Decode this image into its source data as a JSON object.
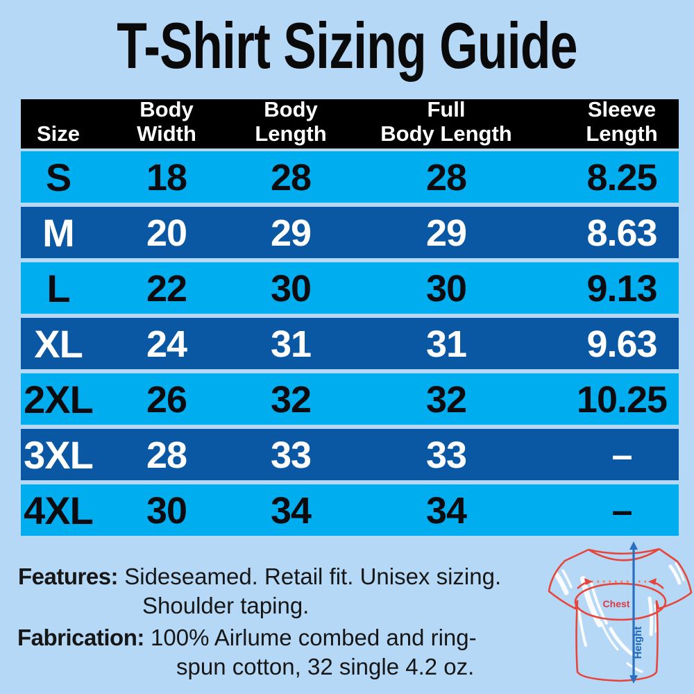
{
  "title": "T-Shirt Sizing Guide",
  "chart_data": {
    "type": "table",
    "title": "T-Shirt Sizing Guide",
    "columns": [
      "Size",
      "Body Width",
      "Body Length",
      "Full Body Length",
      "Sleeve Length"
    ],
    "rows": [
      [
        "S",
        18,
        28,
        28,
        8.25
      ],
      [
        "M",
        20,
        29,
        29,
        8.63
      ],
      [
        "L",
        22,
        30,
        30,
        9.13
      ],
      [
        "XL",
        24,
        31,
        31,
        9.63
      ],
      [
        "2XL",
        26,
        32,
        32,
        10.25
      ],
      [
        "3XL",
        28,
        33,
        33,
        "–"
      ],
      [
        "4XL",
        30,
        34,
        34,
        "–"
      ]
    ]
  },
  "table": {
    "headers": [
      "Size",
      "Body\nWidth",
      "Body\nLength",
      "Full\nBody Length",
      "Sleeve\nLength"
    ],
    "rows": [
      {
        "size": "S",
        "body_width": "18",
        "body_length": "28",
        "full_body_length": "28",
        "sleeve_length": "8.25",
        "shade": "light"
      },
      {
        "size": "M",
        "body_width": "20",
        "body_length": "29",
        "full_body_length": "29",
        "sleeve_length": "8.63",
        "shade": "dark"
      },
      {
        "size": "L",
        "body_width": "22",
        "body_length": "30",
        "full_body_length": "30",
        "sleeve_length": "9.13",
        "shade": "light"
      },
      {
        "size": "XL",
        "body_width": "24",
        "body_length": "31",
        "full_body_length": "31",
        "sleeve_length": "9.63",
        "shade": "dark"
      },
      {
        "size": "2XL",
        "body_width": "26",
        "body_length": "32",
        "full_body_length": "32",
        "sleeve_length": "10.25",
        "shade": "light"
      },
      {
        "size": "3XL",
        "body_width": "28",
        "body_length": "33",
        "full_body_length": "33",
        "sleeve_length": "–",
        "shade": "dark"
      },
      {
        "size": "4XL",
        "body_width": "30",
        "body_length": "34",
        "full_body_length": "34",
        "sleeve_length": "–",
        "shade": "light"
      }
    ]
  },
  "features": {
    "label": "Features:",
    "line1": "Sideseamed. Retail fit. Unisex sizing.",
    "line2": "Shoulder taping."
  },
  "fabrication": {
    "label": "Fabrication:",
    "line1": "100% Airlume combed and ring-",
    "line2": "spun cotton, 32 single 4.2 oz."
  },
  "diagram": {
    "chest_label": "Chest",
    "height_label": "Height"
  },
  "colors": {
    "background": "#b5d8f6",
    "row_light": "#00aeef",
    "row_dark": "#0a57a4",
    "header_bg": "#000000",
    "shirt_outline": "#e8453a",
    "measure_red": "#d93a44",
    "measure_dots": "#ef7b55",
    "measure_blue": "#2a6fc0",
    "height_text": "#1e68b8"
  }
}
